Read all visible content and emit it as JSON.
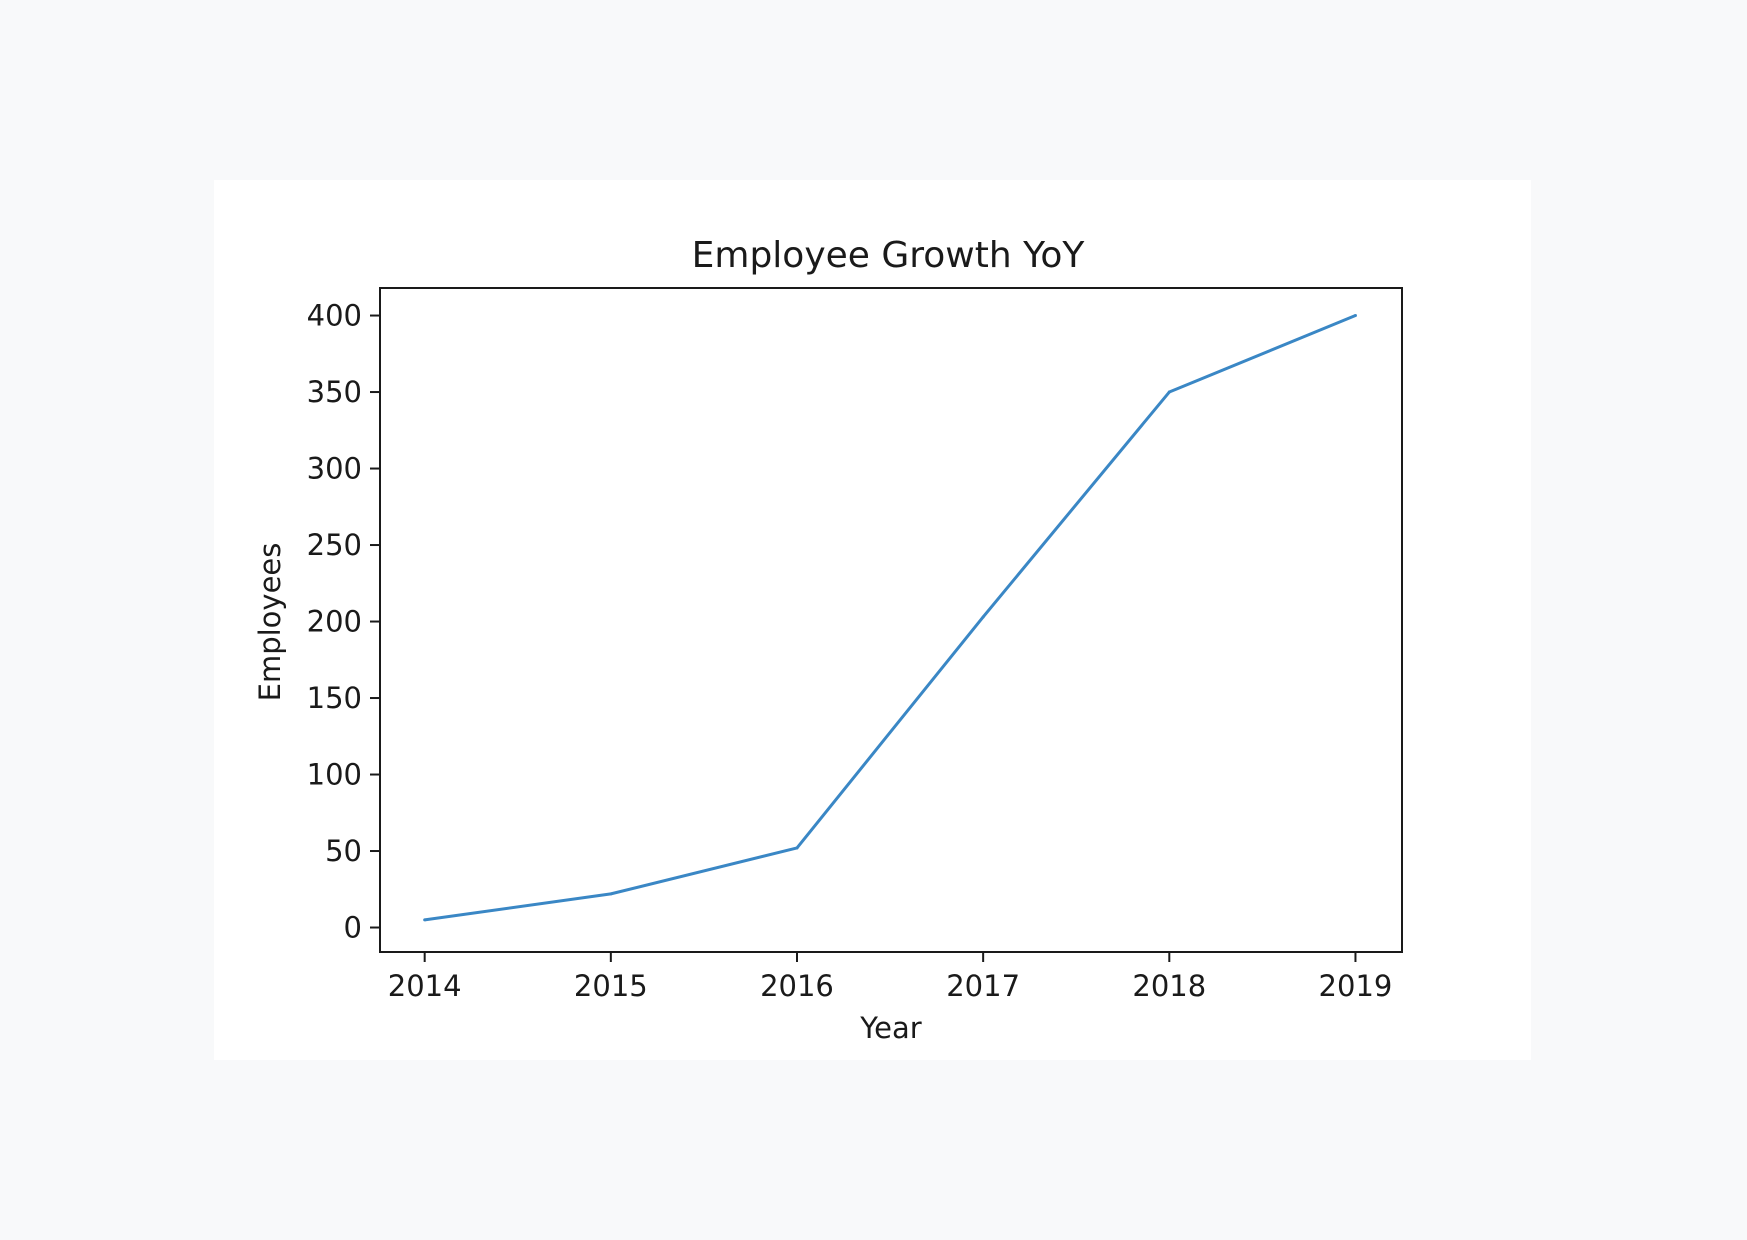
{
  "chart_data": {
    "type": "line",
    "title": "Employee Growth YoY",
    "xlabel": "Year",
    "ylabel": "Employees",
    "x": [
      2014,
      2015,
      2016,
      2017,
      2018,
      2019
    ],
    "series": [
      {
        "values": [
          5,
          22,
          52,
          203,
          350,
          400
        ],
        "color": "#3a87c5"
      }
    ],
    "xticks": [
      "2014",
      "2015",
      "2016",
      "2017",
      "2018",
      "2019"
    ],
    "yticks": [
      "0",
      "50",
      "100",
      "150",
      "200",
      "250",
      "300",
      "350",
      "400"
    ],
    "ylim": [
      -16,
      418
    ],
    "xlim": [
      2013.76,
      2019.25
    ],
    "grid": false,
    "legend": "none"
  }
}
